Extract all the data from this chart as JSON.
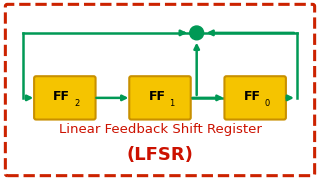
{
  "bg_color": "#ffffff",
  "border_color": "#cc2200",
  "box_color": "#f5c400",
  "box_edge_color": "#c89000",
  "arrow_color": "#009955",
  "circle_color": "#009955",
  "text_color": "#cc1100",
  "boxes": [
    {
      "label": "FF",
      "sub": "2"
    },
    {
      "label": "FF",
      "sub": "1"
    },
    {
      "label": "FF",
      "sub": "0"
    }
  ],
  "title_line1": "Linear Feedback Shift Register",
  "title_line2": "(LFSR)"
}
